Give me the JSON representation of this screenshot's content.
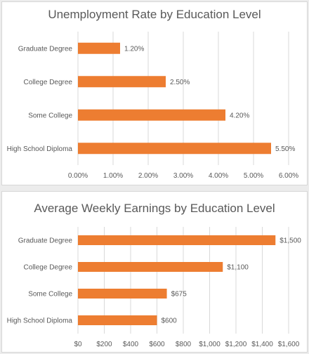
{
  "theme": {
    "bar_color": "#ed7d31",
    "grid_color": "#d9d9d9",
    "text_color": "#595959"
  },
  "chart_data": [
    {
      "type": "bar",
      "orientation": "horizontal",
      "title": "Unemployment Rate by Education Level",
      "categories": [
        "Graduate Degree",
        "College Degree",
        "Some College",
        "High School Diploma"
      ],
      "values": [
        1.2,
        2.5,
        4.2,
        5.5
      ],
      "value_labels": [
        "1.20%",
        "2.50%",
        "4.20%",
        "5.50%"
      ],
      "xlim": [
        0,
        6
      ],
      "xticks": [
        0,
        1,
        2,
        3,
        4,
        5,
        6
      ],
      "xtick_labels": [
        "0.00%",
        "1.00%",
        "2.00%",
        "3.00%",
        "4.00%",
        "5.00%",
        "6.00%"
      ],
      "grid": true,
      "legend": "none"
    },
    {
      "type": "bar",
      "orientation": "horizontal",
      "title": "Average Weekly Earnings by Education Level",
      "categories": [
        "Graduate Degree",
        "College Degree",
        "Some College",
        "High School Diploma"
      ],
      "values": [
        1500,
        1100,
        675,
        600
      ],
      "value_labels": [
        "$1,500",
        "$1,100",
        "$675",
        "$600"
      ],
      "xlim": [
        0,
        1600
      ],
      "xticks": [
        0,
        200,
        400,
        600,
        800,
        1000,
        1200,
        1400,
        1600
      ],
      "xtick_labels": [
        "$0",
        "$200",
        "$400",
        "$600",
        "$800",
        "$1,000",
        "$1,200",
        "$1,400",
        "$1,600"
      ],
      "grid": true,
      "legend": "none"
    }
  ]
}
